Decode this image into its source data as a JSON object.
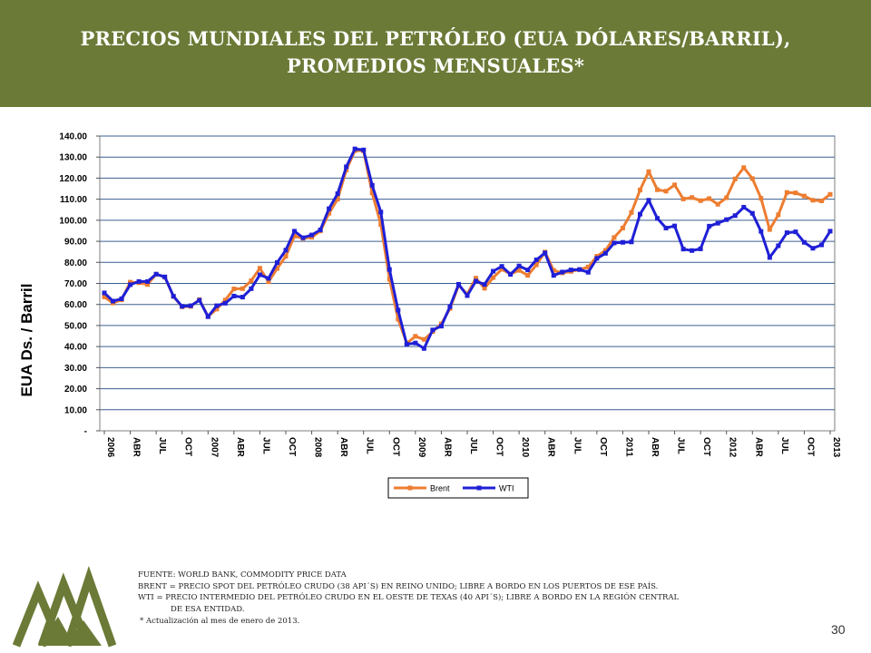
{
  "slide": {
    "title_line1": "PRECIOS MUNDIALES DEL PETRÓLEO (EUA DÓLARES/BARRIL),",
    "title_line2": "PROMEDIOS MENSUALES*",
    "page_number": "30",
    "notes": [
      "FUENTE: WORLD BANK, COMMODITY PRICE DATA",
      "BRENT = PRECIO SPOT DEL PETRÓLEO CRUDO (38 API´S) EN REINO UNIDO; LIBRE A BORDO EN LOS PUERTOS DE ESE PAÍS.",
      "WTI = PRECIO INTERMEDIO DEL PETRÓLEO CRUDO EN EL OESTE DE TEXAS (40 API´S); LIBRE A BORDO EN LA REGIÓN CENTRAL",
      "DE ESA ENTIDAD.",
      "* Actualización al mes de enero de 2013."
    ],
    "colors": {
      "header": "#6b7a36",
      "brent": "#ed7d31",
      "wti": "#1f1fd6",
      "logo": "#6b7a36"
    }
  },
  "chart_data": {
    "type": "line",
    "ylabel": "EUA Ds. / Barril",
    "xlabel": "",
    "ylim": [
      0,
      140
    ],
    "y_ticks": [
      "-",
      "10.00",
      "20.00",
      "30.00",
      "40.00",
      "50.00",
      "60.00",
      "70.00",
      "80.00",
      "90.00",
      "100.00",
      "110.00",
      "120.00",
      "130.00",
      "140.00"
    ],
    "x_tick_labels": [
      "2006",
      "ABR",
      "JUL",
      "OCT",
      "2007",
      "ABR",
      "JUL",
      "OCT",
      "2008",
      "ABR",
      "JUL",
      "OCT",
      "2009",
      "ABR",
      "JUL",
      "OCT",
      "2010",
      "ABR",
      "JUL",
      "OCT",
      "2011",
      "ABR",
      "JUL",
      "OCT",
      "2012",
      "ABR",
      "JUL",
      "OCT",
      "2013"
    ],
    "grid": true,
    "legend_position": "bottom",
    "series": [
      {
        "name": "Brent",
        "values": [
          63.6,
          60.7,
          62.2,
          70.6,
          70.3,
          69.5,
          74.4,
          73.0,
          63.8,
          58.9,
          59.1,
          62.3,
          54.3,
          57.8,
          62.1,
          67.4,
          67.5,
          71.3,
          77.2,
          70.8,
          77.1,
          82.9,
          92.5,
          91.4,
          91.9,
          94.9,
          103.3,
          110.0,
          123.9,
          133.1,
          133.0,
          113.0,
          98.0,
          72.0,
          53.0,
          41.6,
          44.9,
          43.4,
          47.1,
          50.8,
          58.1,
          69.1,
          64.9,
          72.5,
          67.7,
          72.8,
          76.7,
          74.5,
          76.2,
          73.8,
          78.8,
          84.9,
          76.2,
          75.0,
          75.7,
          76.6,
          77.8,
          82.9,
          85.7,
          91.8,
          96.3,
          103.7,
          114.4,
          123.1,
          114.5,
          113.8,
          116.8,
          110.1,
          110.8,
          109.3,
          110.3,
          107.6,
          110.7,
          119.6,
          125.0,
          119.8,
          110.4,
          95.6,
          102.6,
          113.2,
          113.0,
          111.5,
          109.5,
          109.2,
          112.3
        ]
      },
      {
        "name": "WTI",
        "values": [
          65.5,
          61.6,
          62.7,
          69.4,
          70.9,
          70.9,
          74.4,
          73.1,
          63.9,
          59.1,
          59.4,
          62.0,
          54.2,
          59.4,
          60.6,
          64.0,
          63.5,
          67.5,
          74.1,
          72.4,
          79.9,
          85.8,
          94.8,
          91.7,
          93.0,
          95.4,
          105.5,
          112.6,
          125.4,
          133.9,
          133.4,
          116.6,
          103.9,
          76.6,
          57.3,
          41.1,
          41.7,
          39.1,
          47.9,
          49.7,
          59.0,
          69.6,
          64.2,
          71.1,
          69.5,
          75.8,
          78.1,
          74.3,
          78.3,
          76.4,
          81.2,
          84.5,
          73.8,
          75.4,
          76.4,
          76.6,
          75.3,
          81.9,
          84.3,
          89.2,
          89.5,
          89.7,
          102.9,
          109.5,
          100.9,
          96.3,
          97.3,
          86.3,
          85.6,
          86.4,
          97.2,
          98.6,
          100.3,
          102.2,
          106.2,
          103.3,
          94.7,
          82.3,
          87.9,
          94.1,
          94.5,
          89.5,
          86.7,
          88.3,
          94.8
        ]
      }
    ]
  }
}
